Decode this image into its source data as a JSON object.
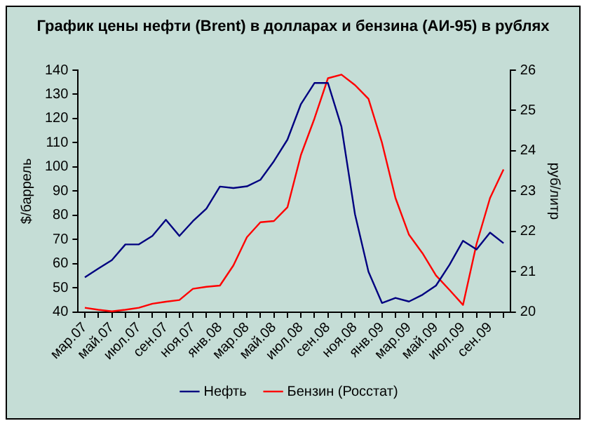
{
  "chart_data": {
    "type": "line",
    "title": "График цены нефти (Brent) в долларах и бензина (АИ-95) в рублях",
    "ylabel": "$/баррель",
    "y2label": "руб/литр",
    "categories": [
      "мар.07",
      null,
      "май.07",
      null,
      "июл.07",
      null,
      "сен.07",
      null,
      "ноя.07",
      null,
      "янв.08",
      null,
      "мар.08",
      null,
      "май.08",
      null,
      "июл.08",
      null,
      "сен.08",
      null,
      "ноя.08",
      null,
      "янв.09",
      null,
      "мар.09",
      null,
      "май.09",
      null,
      "июл.09",
      null,
      "сен.09",
      null
    ],
    "series": [
      {
        "name": "Нефть",
        "color": "#000080",
        "values": [
          54.4,
          58,
          61.5,
          68,
          68,
          71.5,
          78.2,
          71.5,
          77.6,
          82.8,
          91.9,
          91.3,
          92,
          94.7,
          102.4,
          111.3,
          126,
          134.7,
          134.7,
          116.6,
          80.5,
          56.7,
          43.8,
          45.9,
          44.4,
          47.2,
          51,
          59.6,
          69.5,
          65.9,
          72.9,
          68.5
        ]
      },
      {
        "name": "Бензин (Росстат)",
        "color": "#ff0000",
        "axis": "y2",
        "values": [
          20.11,
          20.06,
          20.02,
          20.06,
          20.11,
          20.21,
          20.26,
          20.3,
          20.58,
          20.63,
          20.66,
          21.16,
          21.86,
          22.23,
          22.26,
          22.6,
          23.9,
          24.8,
          25.8,
          25.89,
          25.63,
          25.29,
          24.2,
          22.83,
          21.92,
          21.46,
          20.91,
          20.55,
          20.18,
          21.69,
          22.83,
          23.54
        ]
      }
    ],
    "ylim": [
      40,
      140
    ],
    "yticks": [
      40,
      50,
      60,
      70,
      80,
      90,
      100,
      110,
      120,
      130,
      140
    ],
    "y2lim": [
      20,
      26
    ],
    "y2ticks": [
      20,
      21,
      22,
      23,
      24,
      25,
      26
    ],
    "grid": false,
    "legend": "bottom",
    "marker": "none",
    "line_style": "solid"
  }
}
